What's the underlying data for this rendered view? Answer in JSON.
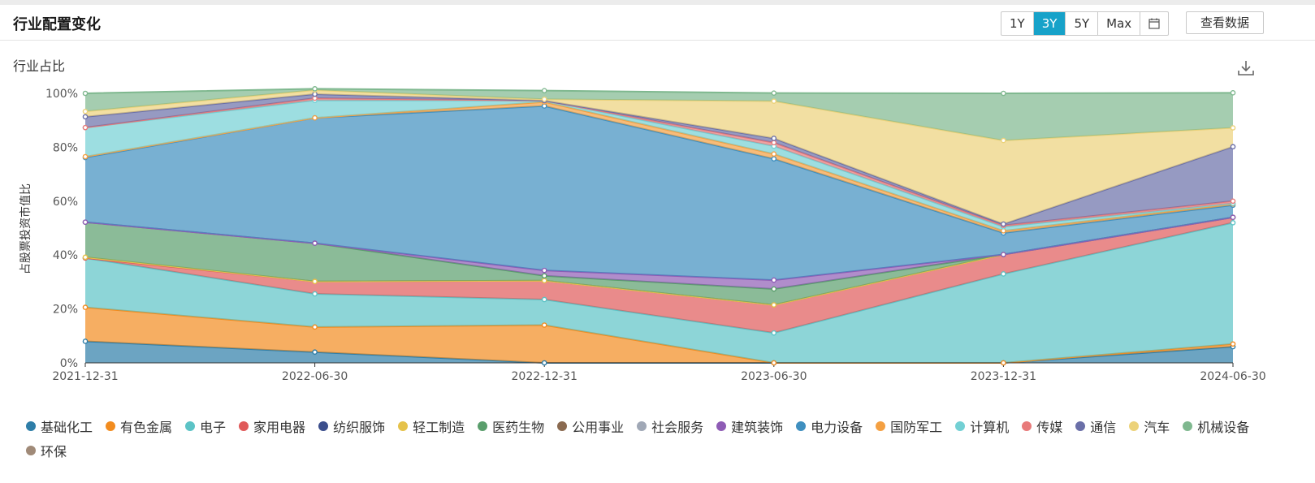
{
  "header": {
    "title": "行业配置变化",
    "ranges": [
      "1Y",
      "3Y",
      "5Y",
      "Max"
    ],
    "active_range": "3Y",
    "view_data_label": "查看数据"
  },
  "chart_subtitle": "行业占比",
  "icons": {
    "calendar": "calendar-icon",
    "download": "download-icon"
  },
  "chart_data": {
    "type": "area",
    "stacked": true,
    "ylabel": "占股票投资市值比",
    "x": [
      "2021-12-31",
      "2022-06-30",
      "2022-12-31",
      "2023-06-30",
      "2023-12-31",
      "2024-06-30"
    ],
    "ylim": [
      0,
      100
    ],
    "yticks": [
      "0%",
      "20%",
      "40%",
      "60%",
      "80%",
      "100%"
    ],
    "grid": false,
    "legend_position": "bottom",
    "series": [
      {
        "name": "基础化工",
        "color": "#2e7ea8",
        "values": [
          8,
          4,
          0,
          0,
          0,
          6
        ]
      },
      {
        "name": "有色金属",
        "color": "#f28c1f",
        "values": [
          12.6,
          9.3,
          14,
          0,
          0,
          1
        ]
      },
      {
        "name": "电子",
        "color": "#5cc3c6",
        "values": [
          18.3,
          12.3,
          9.5,
          11.1,
          33,
          45
        ]
      },
      {
        "name": "家用电器",
        "color": "#e05a5a",
        "values": [
          0,
          4.6,
          7,
          10.4,
          7.2,
          2
        ]
      },
      {
        "name": "纺织服饰",
        "color": "#3b4e8c",
        "values": [
          0,
          0,
          0,
          0,
          0,
          0
        ]
      },
      {
        "name": "轻工制造",
        "color": "#e5c24b",
        "values": [
          0.3,
          0,
          0,
          0,
          0,
          0
        ]
      },
      {
        "name": "医药生物",
        "color": "#5a9e6c",
        "values": [
          13,
          14.2,
          1.8,
          5.9,
          0,
          0
        ]
      },
      {
        "name": "公用事业",
        "color": "#8a6a50",
        "values": [
          0,
          0,
          0,
          0,
          0,
          0
        ]
      },
      {
        "name": "社会服务",
        "color": "#a0a8b6",
        "values": [
          0,
          0,
          0,
          0,
          0,
          0
        ]
      },
      {
        "name": "建筑装饰",
        "color": "#8e5cb5",
        "values": [
          0,
          0,
          2,
          3.3,
          0,
          0
        ]
      },
      {
        "name": "电力设备",
        "color": "#3f8fbf",
        "values": [
          24,
          46.5,
          61,
          45,
          8,
          4.5
        ]
      },
      {
        "name": "国防军工",
        "color": "#f4a042",
        "values": [
          0.3,
          0,
          1.5,
          1.8,
          0.8,
          0.5
        ]
      },
      {
        "name": "计算机",
        "color": "#73d0d4",
        "values": [
          10.8,
          6.5,
          0.5,
          2.9,
          1.5,
          0.2
        ]
      },
      {
        "name": "传媒",
        "color": "#e87a7a",
        "values": [
          0,
          0.8,
          0,
          1.3,
          0.5,
          0.8
        ]
      },
      {
        "name": "通信",
        "color": "#6a6fa8",
        "values": [
          4,
          1.5,
          0,
          1.6,
          0.5,
          20.2
        ]
      },
      {
        "name": "汽车",
        "color": "#ecd27a",
        "values": [
          2,
          1.5,
          0.5,
          13.8,
          31,
          7
        ]
      },
      {
        "name": "机械设备",
        "color": "#7fb88f",
        "values": [
          6.7,
          0.5,
          3.2,
          3,
          17.5,
          13
        ]
      },
      {
        "name": "环保",
        "color": "#a08a78",
        "values": [
          0,
          0,
          0,
          0,
          0,
          0
        ]
      }
    ]
  }
}
